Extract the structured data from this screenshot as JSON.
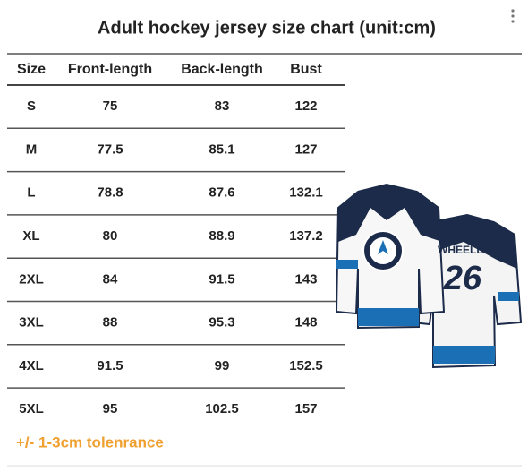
{
  "header": {
    "title": "Adult hockey jersey size chart (unit:cm)"
  },
  "table": {
    "columns": [
      "Size",
      "Front-length",
      "Back-length",
      "Bust"
    ],
    "rows": [
      [
        "S",
        "75",
        "83",
        "122"
      ],
      [
        "M",
        "77.5",
        "85.1",
        "127"
      ],
      [
        "L",
        "78.8",
        "87.6",
        "132.1"
      ],
      [
        "XL",
        "80",
        "88.9",
        "137.2"
      ],
      [
        "2XL",
        "84",
        "91.5",
        "143"
      ],
      [
        "3XL",
        "88",
        "95.3",
        "148"
      ],
      [
        "4XL",
        "91.5",
        "99",
        "152.5"
      ],
      [
        "5XL",
        "95",
        "102.5",
        "157"
      ]
    ]
  },
  "note": "+/- 1-3cm tolenrance",
  "jersey": {
    "name": "WHEELER",
    "number": "26"
  }
}
